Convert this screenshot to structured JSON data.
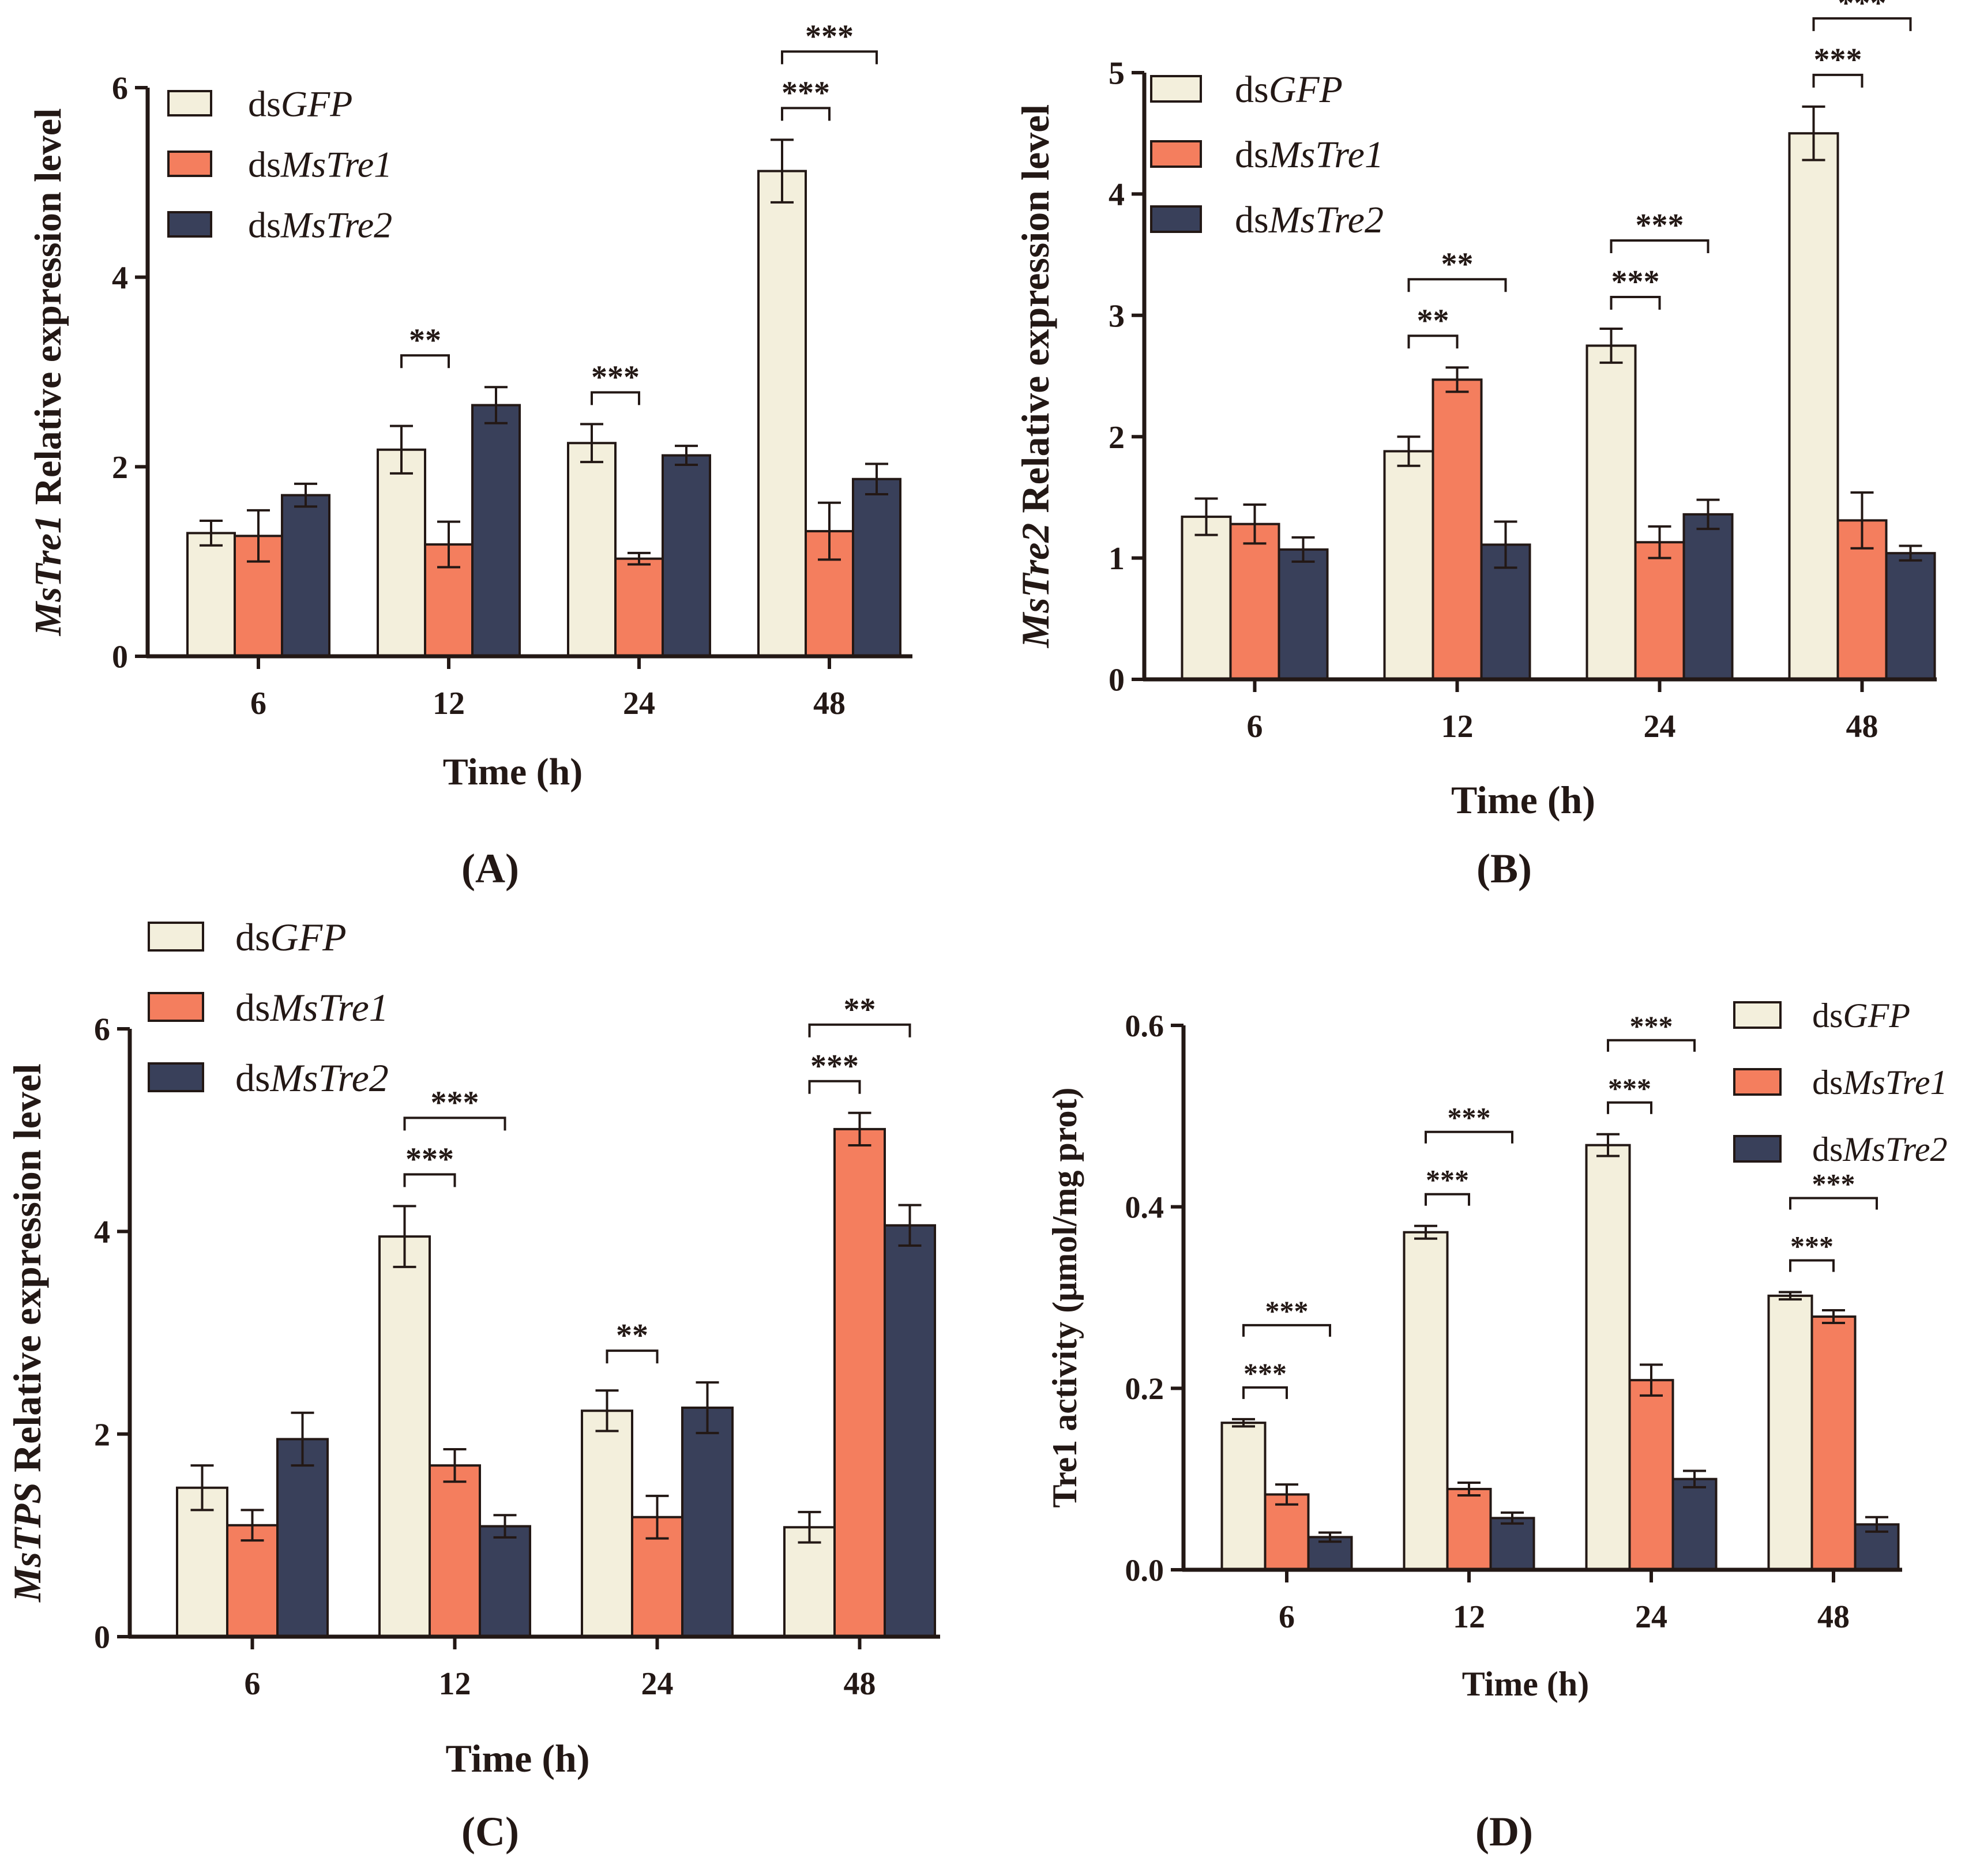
{
  "colors": {
    "dsGFP": "#f3efdc",
    "dsMsTre1": "#f47e5e",
    "dsMsTre2": "#39405a",
    "ink": "#231815"
  },
  "legend_series": [
    {
      "prefix": "ds",
      "name": "GFP"
    },
    {
      "prefix": "ds",
      "name": "MsTre1"
    },
    {
      "prefix": "ds",
      "name": "MsTre2"
    }
  ],
  "chart_data": [
    {
      "panel": "A",
      "type": "bar",
      "panel_label": "(A)",
      "title": "",
      "xlabel": "Time (h)",
      "ylabel_italic": "MsTre1",
      "ylabel_rest": " Relative expression level",
      "categories": [
        "6",
        "12",
        "24",
        "48"
      ],
      "ylim": [
        0,
        6
      ],
      "yticks": [
        "0",
        "2",
        "4",
        "6"
      ],
      "legend_position": "top-left",
      "series": [
        {
          "name": "dsGFP",
          "values": [
            1.3,
            2.18,
            2.25,
            5.12
          ],
          "errors": [
            0.13,
            0.25,
            0.2,
            0.33
          ]
        },
        {
          "name": "dsMsTre1",
          "values": [
            1.27,
            1.18,
            1.03,
            1.32
          ],
          "errors": [
            0.27,
            0.24,
            0.06,
            0.3
          ]
        },
        {
          "name": "dsMsTre2",
          "values": [
            1.7,
            2.65,
            2.12,
            1.87
          ],
          "errors": [
            0.12,
            0.19,
            0.1,
            0.16
          ]
        }
      ],
      "annotations": [
        {
          "category": 1,
          "from": 0,
          "to": 1,
          "label": "**",
          "level": 1
        },
        {
          "category": 2,
          "from": 0,
          "to": 1,
          "label": "***",
          "level": 1
        },
        {
          "category": 3,
          "from": 0,
          "to": 1,
          "label": "***",
          "level": 1
        },
        {
          "category": 3,
          "from": 0,
          "to": 2,
          "label": "***",
          "level": 2
        }
      ]
    },
    {
      "panel": "B",
      "type": "bar",
      "panel_label": "(B)",
      "title": "",
      "xlabel": "Time (h)",
      "ylabel_italic": "MsTre2",
      "ylabel_rest": " Relative expression level",
      "categories": [
        "6",
        "12",
        "24",
        "48"
      ],
      "ylim": [
        0,
        5
      ],
      "yticks": [
        "0",
        "1",
        "2",
        "3",
        "4",
        "5"
      ],
      "legend_position": "top-left",
      "series": [
        {
          "name": "dsGFP",
          "values": [
            1.34,
            1.88,
            2.75,
            4.5
          ],
          "errors": [
            0.15,
            0.12,
            0.14,
            0.22
          ]
        },
        {
          "name": "dsMsTre1",
          "values": [
            1.28,
            2.47,
            1.13,
            1.31
          ],
          "errors": [
            0.16,
            0.1,
            0.13,
            0.23
          ]
        },
        {
          "name": "dsMsTre2",
          "values": [
            1.07,
            1.11,
            1.36,
            1.04
          ],
          "errors": [
            0.1,
            0.19,
            0.12,
            0.06
          ]
        }
      ],
      "annotations": [
        {
          "category": 1,
          "from": 0,
          "to": 1,
          "label": "**",
          "level": 1
        },
        {
          "category": 1,
          "from": 0,
          "to": 2,
          "label": "**",
          "level": 2
        },
        {
          "category": 2,
          "from": 0,
          "to": 1,
          "label": "***",
          "level": 1
        },
        {
          "category": 2,
          "from": 0,
          "to": 2,
          "label": "***",
          "level": 2
        },
        {
          "category": 3,
          "from": 0,
          "to": 1,
          "label": "***",
          "level": 1
        },
        {
          "category": 3,
          "from": 0,
          "to": 2,
          "label": "***",
          "level": 2
        }
      ]
    },
    {
      "panel": "C",
      "type": "bar",
      "panel_label": "(C)",
      "title": "",
      "xlabel": "Time (h)",
      "ylabel_italic": "MsTPS",
      "ylabel_rest": " Relative expression level",
      "categories": [
        "6",
        "12",
        "24",
        "48"
      ],
      "ylim": [
        0,
        6
      ],
      "yticks": [
        "0",
        "2",
        "4",
        "6"
      ],
      "legend_position": "top-left",
      "series": [
        {
          "name": "dsGFP",
          "values": [
            1.47,
            3.95,
            2.23,
            1.08
          ],
          "errors": [
            0.22,
            0.3,
            0.2,
            0.15
          ]
        },
        {
          "name": "dsMsTre1",
          "values": [
            1.1,
            1.69,
            1.18,
            5.01
          ],
          "errors": [
            0.15,
            0.16,
            0.21,
            0.16
          ]
        },
        {
          "name": "dsMsTre2",
          "values": [
            1.95,
            1.09,
            2.26,
            4.06
          ],
          "errors": [
            0.26,
            0.11,
            0.25,
            0.2
          ]
        }
      ],
      "annotations": [
        {
          "category": 1,
          "from": 0,
          "to": 1,
          "label": "***",
          "level": 1
        },
        {
          "category": 1,
          "from": 0,
          "to": 2,
          "label": "***",
          "level": 2
        },
        {
          "category": 2,
          "from": 0,
          "to": 1,
          "label": "**",
          "level": 1
        },
        {
          "category": 3,
          "from": 0,
          "to": 1,
          "label": "***",
          "level": 1
        },
        {
          "category": 3,
          "from": 0,
          "to": 2,
          "label": "**",
          "level": 2
        }
      ]
    },
    {
      "panel": "D",
      "type": "bar",
      "panel_label": "(D)",
      "title": "",
      "xlabel": "Time (h)",
      "ylabel_italic": "",
      "ylabel_rest": "Tre1 activity (μmol/mg prot)",
      "categories": [
        "6",
        "12",
        "24",
        "48"
      ],
      "ylim": [
        0,
        0.6
      ],
      "yticks": [
        "0.0",
        "0.2",
        "0.4",
        "0.6"
      ],
      "legend_position": "top-right",
      "series": [
        {
          "name": "dsGFP",
          "values": [
            0.162,
            0.372,
            0.468,
            0.302
          ],
          "errors": [
            0.004,
            0.007,
            0.012,
            0.004
          ]
        },
        {
          "name": "dsMsTre1",
          "values": [
            0.083,
            0.089,
            0.209,
            0.279
          ],
          "errors": [
            0.011,
            0.007,
            0.017,
            0.007
          ]
        },
        {
          "name": "dsMsTre2",
          "values": [
            0.036,
            0.057,
            0.1,
            0.05
          ],
          "errors": [
            0.005,
            0.006,
            0.009,
            0.008
          ]
        }
      ],
      "annotations": [
        {
          "category": 0,
          "from": 0,
          "to": 1,
          "label": "***",
          "level": 1
        },
        {
          "category": 0,
          "from": 0,
          "to": 2,
          "label": "***",
          "level": 2
        },
        {
          "category": 1,
          "from": 0,
          "to": 1,
          "label": "***",
          "level": 1
        },
        {
          "category": 1,
          "from": 0,
          "to": 2,
          "label": "***",
          "level": 2
        },
        {
          "category": 2,
          "from": 0,
          "to": 1,
          "label": "***",
          "level": 1
        },
        {
          "category": 2,
          "from": 0,
          "to": 2,
          "label": "***",
          "level": 2
        },
        {
          "category": 3,
          "from": 0,
          "to": 1,
          "label": "***",
          "level": 1
        },
        {
          "category": 3,
          "from": 0,
          "to": 2,
          "label": "***",
          "level": 2
        }
      ]
    }
  ]
}
